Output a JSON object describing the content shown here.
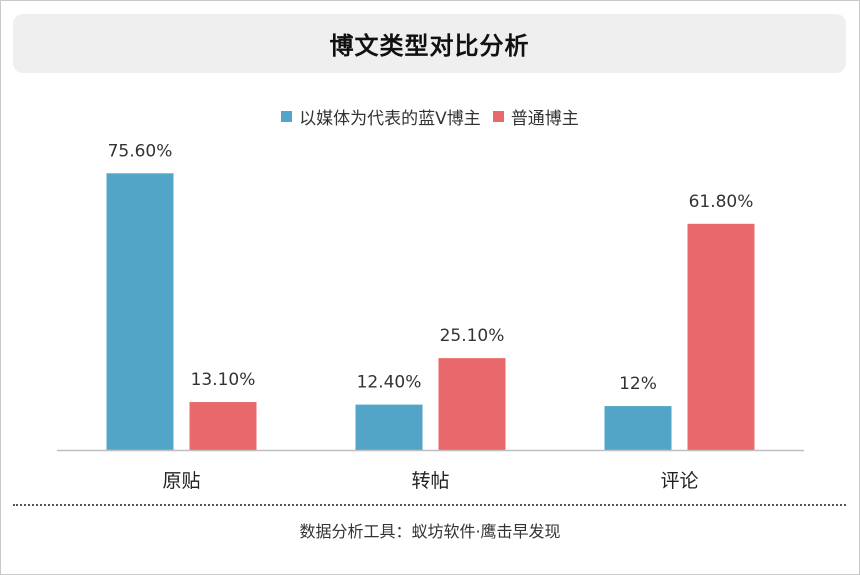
{
  "title": "博文类型对比分析",
  "legend": [
    {
      "label": "以媒体为代表的蓝V博主",
      "color": "#52a5c6"
    },
    {
      "label": "普通博主",
      "color": "#e8686b"
    }
  ],
  "footer": "数据分析工具：蚁坊软件·鹰击早发现",
  "chart_data": {
    "type": "bar",
    "categories": [
      "原贴",
      "转帖",
      "评论"
    ],
    "series": [
      {
        "name": "以媒体为代表的蓝V博主",
        "values": [
          75.6,
          12.4,
          12
        ],
        "labels": [
          "75.60%",
          "12.40%",
          "12%"
        ],
        "color": "#52a5c6"
      },
      {
        "name": "普通博主",
        "values": [
          13.1,
          25.1,
          61.8
        ],
        "labels": [
          "13.10%",
          "25.10%",
          "61.80%"
        ],
        "color": "#e8686b"
      }
    ],
    "ylim": [
      0,
      100
    ],
    "grid": false,
    "legend_position": "top"
  }
}
